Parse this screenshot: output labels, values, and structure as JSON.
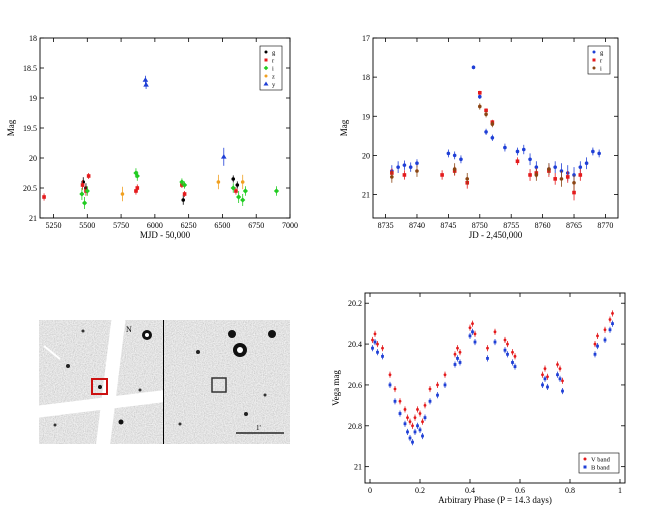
{
  "figure": {
    "panels": [
      {
        "id": "a",
        "kind": "chart",
        "chart_index": 0
      },
      {
        "id": "b",
        "kind": "chart",
        "chart_index": 1
      },
      {
        "id": "c",
        "kind": "image",
        "north_label": "N",
        "scale_label": "1'"
      },
      {
        "id": "d",
        "kind": "chart",
        "chart_index": 2
      }
    ]
  },
  "chart_data": [
    {
      "type": "scatter",
      "title": "",
      "xlabel": "MJD - 50,000",
      "ylabel": "Mag",
      "xlim": [
        5150,
        7000
      ],
      "ylim": [
        18,
        21
      ],
      "y_inverted": true,
      "x_ticks": [
        "5250",
        "5500",
        "5750",
        "6000",
        "6250",
        "6500",
        "6750",
        "7000"
      ],
      "x_tick_values": [
        5250,
        5500,
        5750,
        6000,
        6250,
        6500,
        6750,
        7000
      ],
      "y_ticks": [
        "18",
        "18.5",
        "19",
        "19.5",
        "20",
        "20.5",
        "21"
      ],
      "y_tick_values": [
        18,
        18.5,
        19,
        19.5,
        20,
        20.5,
        21
      ],
      "legend_position": "top-right",
      "series": [
        {
          "name": "g",
          "color": "#000000",
          "marker": "circle",
          "x": [
            5470,
            5490,
            6210,
            6580,
            6610
          ],
          "y": [
            20.4,
            20.5,
            20.7,
            20.35,
            20.45
          ],
          "err": [
            0.08,
            0.08,
            0.08,
            0.06,
            0.06
          ]
        },
        {
          "name": "r",
          "color": "#e41a1c",
          "marker": "square",
          "x": [
            5180,
            5465,
            5490,
            5510,
            5860,
            5870,
            6200,
            6220,
            6600
          ],
          "y": [
            20.65,
            20.45,
            20.55,
            20.3,
            20.55,
            20.5,
            20.45,
            20.6,
            20.55
          ],
          "err": [
            0.06,
            0.08,
            0.08,
            0.05,
            0.06,
            0.06,
            0.05,
            0.05,
            0.06
          ]
        },
        {
          "name": "i",
          "color": "#22cc22",
          "marker": "diamond",
          "x": [
            5460,
            5480,
            5500,
            5860,
            5870,
            6200,
            6220,
            6580,
            6620,
            6650,
            6670,
            6900
          ],
          "y": [
            20.6,
            20.75,
            20.55,
            20.25,
            20.3,
            20.4,
            20.45,
            20.5,
            20.65,
            20.7,
            20.55,
            20.55
          ],
          "err": [
            0.1,
            0.1,
            0.08,
            0.08,
            0.08,
            0.06,
            0.06,
            0.08,
            0.1,
            0.1,
            0.08,
            0.08
          ]
        },
        {
          "name": "z",
          "color": "#f0a020",
          "marker": "circle",
          "x": [
            5760,
            6470,
            6650
          ],
          "y": [
            20.6,
            20.4,
            20.4
          ],
          "err": [
            0.12,
            0.12,
            0.12
          ]
        },
        {
          "name": "y",
          "color": "#1f3fd6",
          "marker": "triangle",
          "x": [
            5930,
            5935,
            6510
          ],
          "y": [
            18.7,
            18.78,
            19.98
          ],
          "err": [
            0.07,
            0.07,
            0.15
          ]
        }
      ]
    },
    {
      "type": "scatter",
      "title": "",
      "xlabel": "JD - 2,450,000",
      "ylabel": "Mag",
      "xlim": [
        8733,
        8772
      ],
      "ylim": [
        17,
        21.6
      ],
      "y_inverted": true,
      "x_ticks": [
        "8735",
        "8740",
        "8745",
        "8750",
        "8755",
        "8760",
        "8765",
        "8770"
      ],
      "x_tick_values": [
        8735,
        8740,
        8745,
        8750,
        8755,
        8760,
        8765,
        8770
      ],
      "y_ticks": [
        "17",
        "18",
        "19",
        "20",
        "21"
      ],
      "y_tick_values": [
        17,
        18,
        19,
        20,
        21
      ],
      "legend_position": "top-right",
      "series": [
        {
          "name": "g",
          "color": "#1f3fd6",
          "marker": "circle",
          "x": [
            8736,
            8737,
            8738,
            8739,
            8740,
            8745,
            8746,
            8747,
            8749,
            8750,
            8751,
            8752,
            8754,
            8756,
            8757,
            8758,
            8759,
            8761,
            8762,
            8763,
            8764,
            8765,
            8766,
            8767,
            8768,
            8769
          ],
          "y": [
            20.4,
            20.3,
            20.25,
            20.3,
            20.2,
            19.95,
            20.0,
            20.1,
            17.75,
            18.5,
            19.4,
            19.55,
            19.8,
            19.9,
            19.85,
            20.1,
            20.3,
            20.35,
            20.3,
            20.4,
            20.45,
            20.5,
            20.3,
            20.2,
            19.9,
            19.95
          ],
          "err": [
            0.15,
            0.15,
            0.12,
            0.12,
            0.1,
            0.1,
            0.1,
            0.1,
            0.05,
            0.06,
            0.08,
            0.08,
            0.1,
            0.1,
            0.12,
            0.15,
            0.15,
            0.15,
            0.15,
            0.2,
            0.2,
            0.2,
            0.15,
            0.15,
            0.1,
            0.1
          ]
        },
        {
          "name": "r",
          "color": "#e41a1c",
          "marker": "square",
          "x": [
            8736,
            8738,
            8744,
            8746,
            8748,
            8750,
            8751,
            8752,
            8756,
            8758,
            8759,
            8761,
            8762,
            8764,
            8765,
            8766
          ],
          "y": [
            20.45,
            20.5,
            20.5,
            20.4,
            20.7,
            18.4,
            18.85,
            19.15,
            20.15,
            20.5,
            20.45,
            20.4,
            20.6,
            20.55,
            20.95,
            20.5
          ],
          "err": [
            0.12,
            0.12,
            0.12,
            0.12,
            0.15,
            0.05,
            0.05,
            0.06,
            0.1,
            0.15,
            0.12,
            0.15,
            0.15,
            0.15,
            0.2,
            0.15
          ]
        },
        {
          "name": "i",
          "color": "#8b4513",
          "marker": "circle",
          "x": [
            8736,
            8740,
            8746,
            8748,
            8750,
            8751,
            8752,
            8759,
            8761,
            8763,
            8765
          ],
          "y": [
            20.55,
            20.4,
            20.35,
            20.6,
            18.75,
            18.95,
            19.2,
            20.5,
            20.35,
            20.6,
            20.7
          ],
          "err": [
            0.15,
            0.15,
            0.15,
            0.15,
            0.08,
            0.08,
            0.08,
            0.15,
            0.15,
            0.2,
            0.2
          ]
        }
      ]
    },
    {
      "type": "scatter",
      "title": "",
      "xlabel": "Arbitrary Phase (P = 14.3 days)",
      "ylabel": "Vega mag",
      "xlim": [
        -0.02,
        1.02
      ],
      "ylim": [
        20.15,
        21.08
      ],
      "y_inverted": true,
      "x_ticks": [
        "0",
        "0.2",
        "0.4",
        "0.6",
        "0.8",
        "1"
      ],
      "x_tick_values": [
        0,
        0.2,
        0.4,
        0.6,
        0.8,
        1
      ],
      "y_ticks": [
        "20.2",
        "20.4",
        "20.6",
        "20.8",
        "21"
      ],
      "y_tick_values": [
        20.2,
        20.4,
        20.6,
        20.8,
        21
      ],
      "legend_position": "bottom-right",
      "series": [
        {
          "name": "V band",
          "color": "#e41a1c",
          "marker": "circle",
          "x": [
            0.01,
            0.02,
            0.03,
            0.05,
            0.08,
            0.1,
            0.12,
            0.14,
            0.15,
            0.16,
            0.17,
            0.18,
            0.19,
            0.2,
            0.21,
            0.22,
            0.24,
            0.27,
            0.3,
            0.34,
            0.35,
            0.36,
            0.4,
            0.41,
            0.42,
            0.47,
            0.5,
            0.54,
            0.55,
            0.57,
            0.58,
            0.69,
            0.7,
            0.71,
            0.75,
            0.76,
            0.77,
            0.9,
            0.91,
            0.94,
            0.96,
            0.97
          ],
          "y": [
            20.38,
            20.35,
            20.4,
            20.42,
            20.55,
            20.62,
            20.68,
            20.72,
            20.76,
            20.78,
            20.8,
            20.76,
            20.72,
            20.74,
            20.78,
            20.7,
            20.62,
            20.6,
            20.55,
            20.45,
            20.42,
            20.44,
            20.32,
            20.3,
            20.35,
            20.42,
            20.34,
            20.38,
            20.4,
            20.44,
            20.46,
            20.55,
            20.52,
            20.56,
            20.5,
            20.52,
            20.58,
            20.4,
            20.36,
            20.33,
            20.28,
            20.25
          ],
          "err": [
            0.015,
            0.015,
            0.015,
            0.015,
            0.015,
            0.015,
            0.015,
            0.015,
            0.015,
            0.015,
            0.015,
            0.015,
            0.015,
            0.015,
            0.015,
            0.015,
            0.015,
            0.015,
            0.015,
            0.015,
            0.015,
            0.015,
            0.015,
            0.015,
            0.015,
            0.015,
            0.015,
            0.015,
            0.015,
            0.015,
            0.015,
            0.015,
            0.015,
            0.015,
            0.015,
            0.015,
            0.015,
            0.015,
            0.015,
            0.015,
            0.015,
            0.015
          ]
        },
        {
          "name": "B band",
          "color": "#1f3fd6",
          "marker": "square",
          "x": [
            0.01,
            0.02,
            0.03,
            0.05,
            0.08,
            0.1,
            0.12,
            0.14,
            0.15,
            0.16,
            0.17,
            0.18,
            0.19,
            0.2,
            0.21,
            0.22,
            0.24,
            0.27,
            0.3,
            0.34,
            0.35,
            0.36,
            0.4,
            0.41,
            0.42,
            0.47,
            0.5,
            0.54,
            0.55,
            0.57,
            0.58,
            0.69,
            0.7,
            0.71,
            0.75,
            0.76,
            0.77,
            0.9,
            0.91,
            0.94,
            0.96,
            0.97
          ],
          "y": [
            20.42,
            20.39,
            20.44,
            20.46,
            20.6,
            20.68,
            20.74,
            20.79,
            20.83,
            20.86,
            20.88,
            20.83,
            20.8,
            20.82,
            20.85,
            20.76,
            20.68,
            20.65,
            20.6,
            20.5,
            20.47,
            20.49,
            20.36,
            20.34,
            20.39,
            20.47,
            20.39,
            20.43,
            20.45,
            20.49,
            20.51,
            20.6,
            20.57,
            20.61,
            20.55,
            20.57,
            20.63,
            20.45,
            20.41,
            20.38,
            20.33,
            20.3
          ],
          "err": [
            0.015,
            0.015,
            0.015,
            0.015,
            0.015,
            0.015,
            0.015,
            0.015,
            0.015,
            0.015,
            0.015,
            0.015,
            0.015,
            0.015,
            0.015,
            0.015,
            0.015,
            0.015,
            0.015,
            0.015,
            0.015,
            0.015,
            0.015,
            0.015,
            0.015,
            0.015,
            0.015,
            0.015,
            0.015,
            0.015,
            0.015,
            0.015,
            0.015,
            0.015,
            0.015,
            0.015,
            0.015,
            0.015,
            0.015,
            0.015,
            0.015,
            0.015
          ]
        }
      ]
    }
  ]
}
